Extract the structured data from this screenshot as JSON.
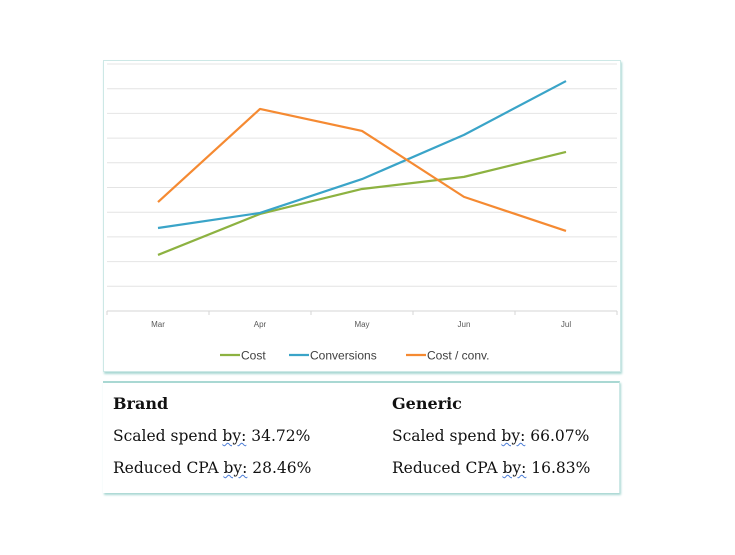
{
  "chart_data": {
    "type": "line",
    "categories": [
      "Mar",
      "Apr",
      "May",
      "Jun",
      "Jul"
    ],
    "ylim": [
      0,
      10
    ],
    "grid": true,
    "legend_position": "bottom",
    "series": [
      {
        "name": "Cost",
        "color": "#8db241",
        "values": [
          2.27,
          3.93,
          4.94,
          5.43,
          6.44
        ]
      },
      {
        "name": "Conversions",
        "color": "#3aa4c8",
        "values": [
          3.36,
          3.97,
          5.34,
          7.13,
          9.31
        ]
      },
      {
        "name": "Cost / conv.",
        "color": "#f58a32",
        "values": [
          4.41,
          8.18,
          7.29,
          4.62,
          3.24
        ]
      }
    ]
  },
  "summary": {
    "brand": {
      "title": "Brand",
      "spend_label": "Scaled spend ",
      "by": "by:",
      "spend_value": " 34.72%",
      "cpa_label": "Reduced CPA ",
      "cpa_value": " 28.46%"
    },
    "generic": {
      "title": "Generic",
      "spend_label": "Scaled spend ",
      "by": "by:",
      "spend_value": " 66.07%",
      "cpa_label": "Reduced CPA ",
      "cpa_value": " 16.83%"
    }
  }
}
